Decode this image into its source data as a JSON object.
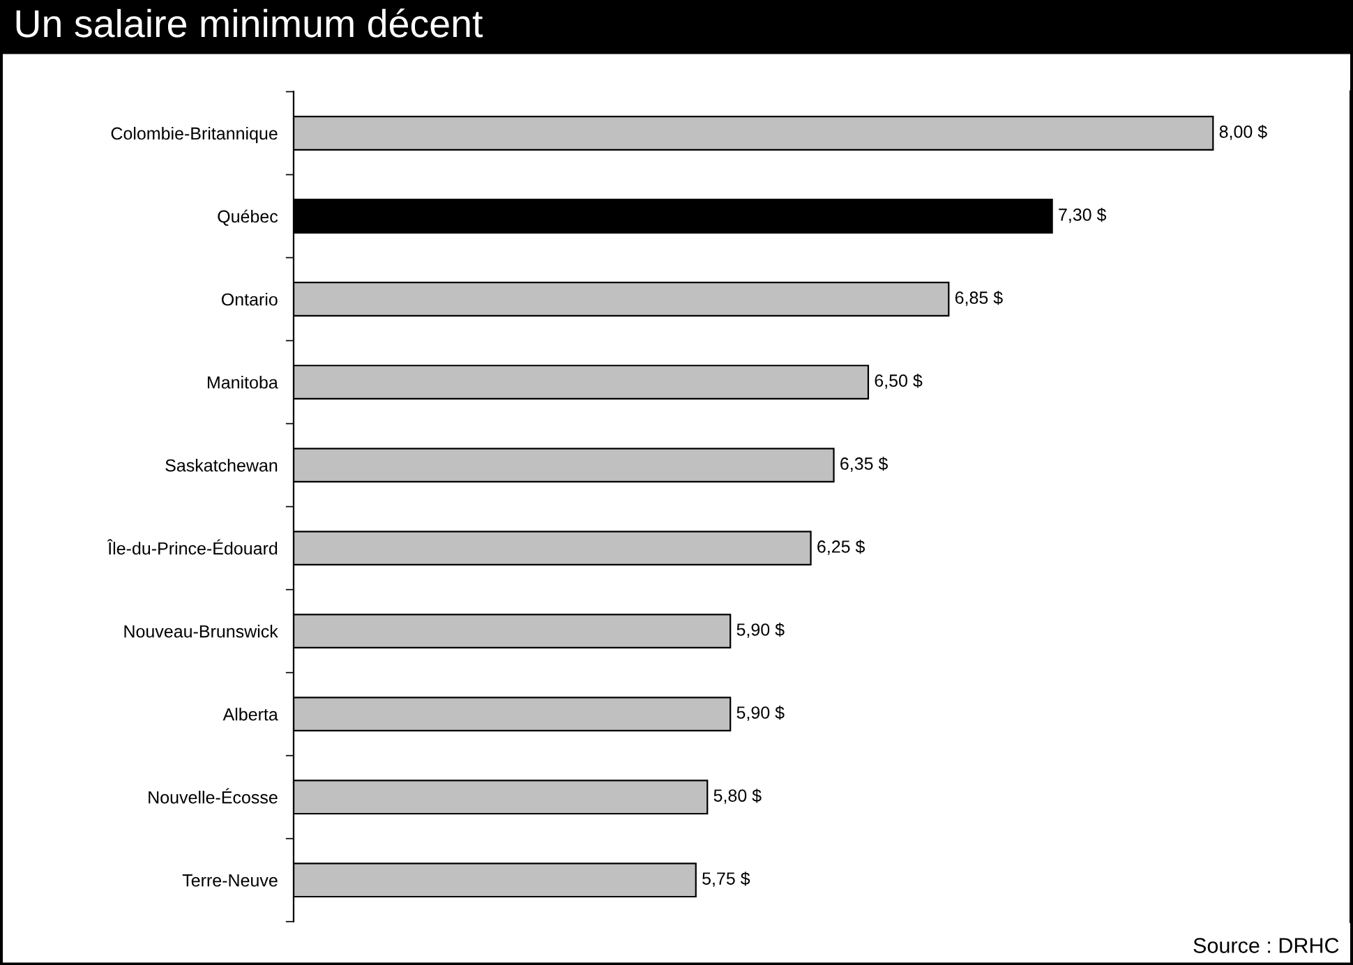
{
  "chart_data": {
    "type": "bar",
    "orientation": "horizontal",
    "title": "Un salaire minimum décent",
    "categories": [
      "Colombie-Britannique",
      "Québec",
      "Ontario",
      "Manitoba",
      "Saskatchewan",
      "Île-du-Prince-Édouard",
      "Nouveau-Brunswick",
      "Alberta",
      "Nouvelle-Écosse",
      "Terre-Neuve"
    ],
    "values": [
      8.0,
      7.3,
      6.85,
      6.5,
      6.35,
      6.25,
      5.9,
      5.9,
      5.8,
      5.75
    ],
    "colors": [
      "#c0c0c0",
      "#000000",
      "#c0c0c0",
      "#c0c0c0",
      "#c0c0c0",
      "#c0c0c0",
      "#c0c0c0",
      "#c0c0c0",
      "#c0c0c0",
      "#c0c0c0"
    ],
    "value_labels": [
      "8,00 $",
      "7,30 $",
      "6,85 $",
      "6,50 $",
      "6,35 $",
      "6,25 $",
      "5,90 $",
      "5,90 $",
      "5,80 $",
      "5,75 $"
    ],
    "xlim": [
      4,
      8.6
    ],
    "tick_labels": "y",
    "grid": false,
    "legend": false,
    "annotations": [
      "Source : DRHC"
    ]
  }
}
